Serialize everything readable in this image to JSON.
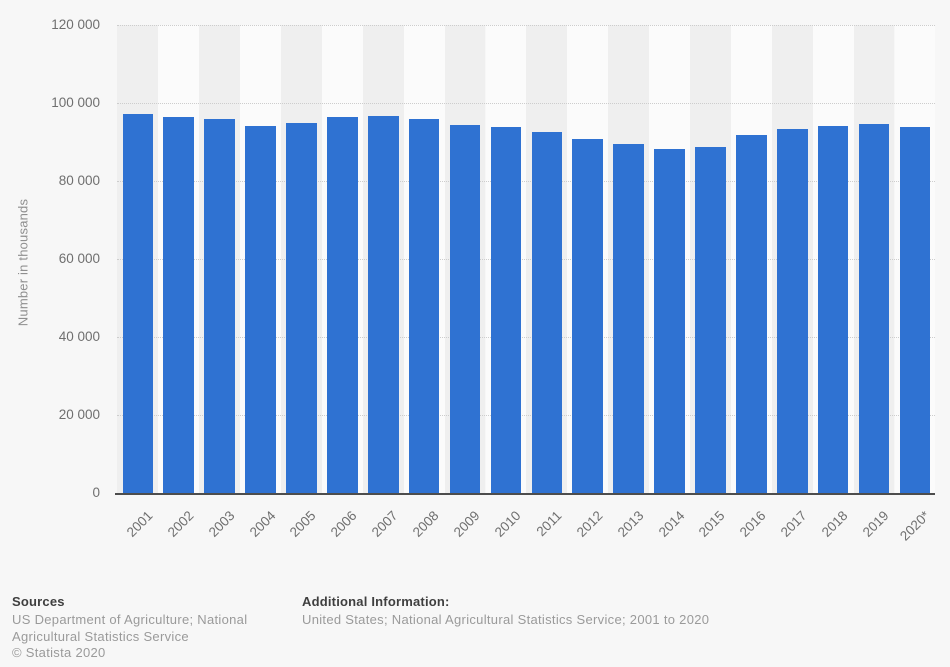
{
  "chart_data": {
    "type": "bar",
    "title": "",
    "xlabel": "",
    "ylabel": "Number in thousands",
    "categories": [
      "2001",
      "2002",
      "2003",
      "2004",
      "2005",
      "2006",
      "2007",
      "2008",
      "2009",
      "2010",
      "2011",
      "2012",
      "2013",
      "2014",
      "2015",
      "2016",
      "2017",
      "2018",
      "2019",
      "2020*"
    ],
    "values": [
      97200,
      96500,
      95900,
      94000,
      94900,
      96300,
      96600,
      95800,
      94400,
      93800,
      92600,
      90700,
      89600,
      88300,
      88700,
      91700,
      93300,
      94100,
      94600,
      93900
    ],
    "ylim": [
      0,
      120000
    ],
    "yticks": [
      {
        "value": 0,
        "label": "0"
      },
      {
        "value": 20000,
        "label": "20 000"
      },
      {
        "value": 40000,
        "label": "40 000"
      },
      {
        "value": 60000,
        "label": "60 000"
      },
      {
        "value": 80000,
        "label": "80 000"
      },
      {
        "value": 100000,
        "label": "100 000"
      },
      {
        "value": 120000,
        "label": "120 000"
      }
    ],
    "grid": "horizontal-dotted",
    "legend": "none",
    "colors": {
      "bar": "#2f72d2",
      "stripe_dark": "#efefef",
      "stripe_light": "#fbfbfb",
      "axis_line": "#4d4d4d",
      "gridline": "#cdcdcd",
      "tick_text": "#6f6f6f",
      "background": "#f7f7f7"
    }
  },
  "footer": {
    "sources_heading": "Sources",
    "sources_text": "US Department of Agriculture; National Agricultural Statistics Service",
    "copyright": "© Statista 2020",
    "additional_heading": "Additional Information:",
    "additional_text": "United States; National Agricultural Statistics Service; 2001 to 2020"
  }
}
